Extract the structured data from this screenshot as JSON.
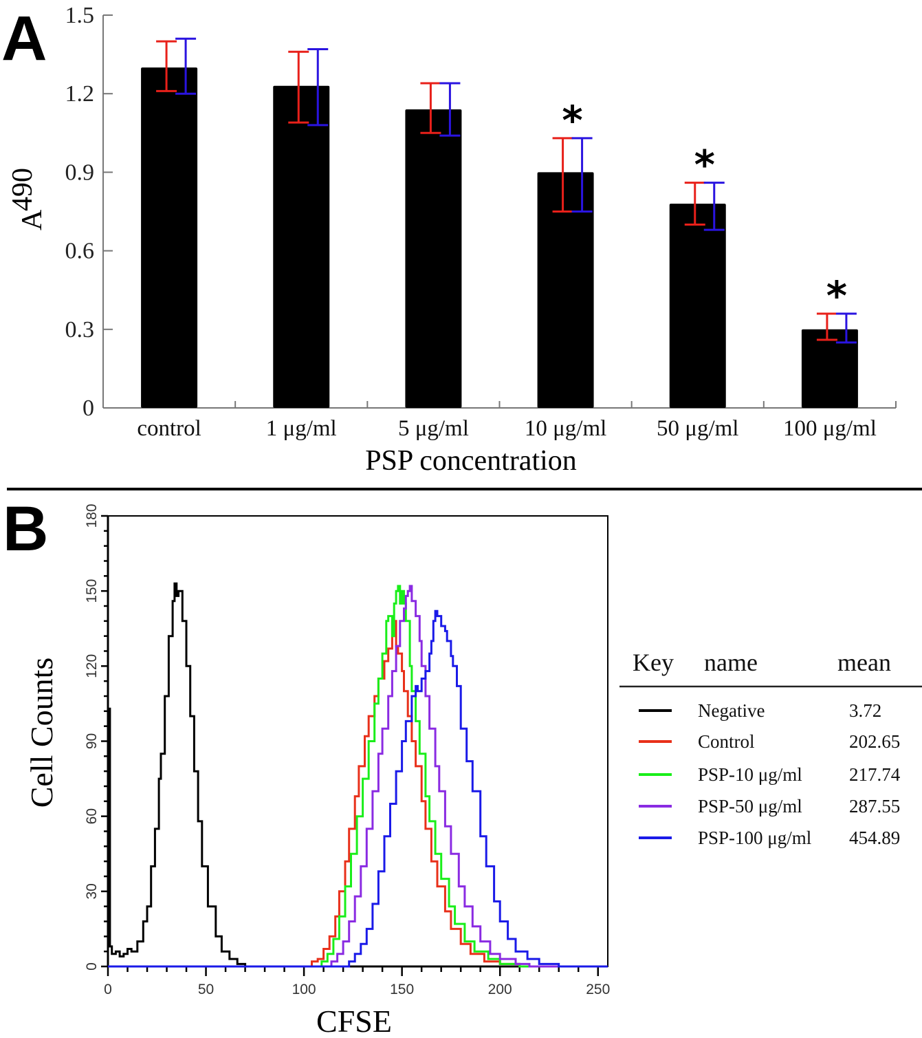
{
  "chart_data": [
    {
      "panel": "A",
      "type": "bar",
      "title": "",
      "xlabel": "PSP concentration",
      "ylabel": "A490",
      "ylabel_main": "A",
      "ylabel_sub": "490",
      "ylim": [
        0,
        1.5
      ],
      "yticks": [
        0,
        0.3,
        0.6,
        0.9,
        1.2,
        1.5
      ],
      "ytick_labels": [
        "0",
        "0.3",
        "0.6",
        "0.9",
        "1.2",
        "1.5"
      ],
      "grid": false,
      "categories": [
        "control",
        "1 μg/ml",
        "5 μg/ml",
        "10 μg/ml",
        "50 μg/ml",
        "100 μg/ml"
      ],
      "values": [
        1.3,
        1.23,
        1.14,
        0.9,
        0.78,
        0.3
      ],
      "bar_color": "#000000",
      "error_bars": [
        {
          "name": "red",
          "color": "#e8201a",
          "upper": [
            1.4,
            1.36,
            1.24,
            1.03,
            0.86,
            0.36
          ],
          "lower": [
            1.21,
            1.09,
            1.05,
            0.75,
            0.7,
            0.26
          ]
        },
        {
          "name": "blue",
          "color": "#2a14e0",
          "upper": [
            1.41,
            1.37,
            1.24,
            1.03,
            0.86,
            0.36
          ],
          "lower": [
            1.2,
            1.08,
            1.04,
            0.75,
            0.68,
            0.25
          ]
        }
      ],
      "significance": [
        "",
        "",
        "",
        "*",
        "*",
        "*"
      ]
    },
    {
      "panel": "B",
      "type": "line",
      "title": "",
      "xlabel": "CFSE",
      "ylabel": "Cell Counts",
      "xlim": [
        0,
        255
      ],
      "ylim": [
        0,
        180
      ],
      "xticks": [
        0,
        50,
        100,
        150,
        200,
        250
      ],
      "xtick_labels": [
        "0",
        "50",
        "100",
        "150",
        "200",
        "250"
      ],
      "yticks": [
        0,
        30,
        60,
        90,
        120,
        150,
        180
      ],
      "ytick_labels": [
        "0",
        "30",
        "60",
        "90",
        "120",
        "150",
        "180"
      ],
      "grid": false,
      "legend": {
        "placement": "right",
        "headers": [
          "Key",
          "name",
          "mean"
        ],
        "entries": [
          {
            "name": "Negative",
            "mean": "3.72",
            "color": "#000000"
          },
          {
            "name": "Control",
            "mean": "202.65",
            "color": "#e8301a"
          },
          {
            "name": "PSP-10 μg/ml",
            "mean": "217.74",
            "color": "#1aee1a"
          },
          {
            "name": "PSP-50 μg/ml",
            "mean": "287.55",
            "color": "#8a2be2"
          },
          {
            "name": "PSP-100 μg/ml",
            "mean": "454.89",
            "color": "#1a1ae8"
          }
        ]
      },
      "series": [
        {
          "name": "Negative",
          "color": "#000000",
          "x": [
            0,
            0.5,
            1,
            2,
            4,
            6,
            8,
            10,
            12,
            15,
            18,
            20,
            22,
            24,
            26,
            27,
            29,
            31,
            33,
            34,
            35,
            36,
            38,
            40,
            42,
            44,
            46,
            48,
            51,
            55,
            58,
            62,
            66,
            70,
            80,
            255
          ],
          "y": [
            103,
            103,
            8,
            5,
            6,
            4,
            5,
            7,
            6,
            10,
            18,
            24,
            40,
            55,
            75,
            85,
            108,
            132,
            146,
            153,
            148,
            150,
            138,
            120,
            100,
            78,
            58,
            40,
            24,
            12,
            6,
            3,
            1,
            0,
            0,
            0
          ]
        },
        {
          "name": "Control",
          "color": "#e8301a",
          "x": [
            0,
            100,
            104,
            107,
            110,
            113,
            116,
            118,
            121,
            123,
            126,
            128,
            131,
            133,
            136,
            138,
            141,
            143,
            145,
            147,
            148,
            150,
            151,
            153,
            155,
            157,
            160,
            162,
            165,
            168,
            172,
            175,
            180,
            185,
            192,
            200,
            210,
            255
          ],
          "y": [
            0,
            0,
            2,
            3,
            7,
            12,
            20,
            30,
            42,
            55,
            68,
            80,
            92,
            100,
            108,
            115,
            122,
            127,
            138,
            128,
            125,
            118,
            110,
            100,
            90,
            80,
            66,
            55,
            42,
            32,
            22,
            15,
            9,
            5,
            2,
            1,
            0,
            0
          ]
        },
        {
          "name": "PSP-10 μg/ml",
          "color": "#1aee1a",
          "x": [
            0,
            105,
            109,
            112,
            115,
            118,
            121,
            124,
            127,
            130,
            133,
            136,
            138,
            140,
            142,
            143,
            145,
            146,
            147,
            148,
            149,
            150,
            151,
            152,
            154,
            155,
            157,
            159,
            162,
            164,
            167,
            170,
            174,
            177,
            182,
            187,
            194,
            200,
            210,
            255
          ],
          "y": [
            0,
            0,
            2,
            5,
            11,
            20,
            32,
            45,
            60,
            75,
            90,
            105,
            115,
            125,
            138,
            140,
            132,
            145,
            150,
            152,
            145,
            150,
            145,
            138,
            120,
            110,
            98,
            85,
            68,
            58,
            45,
            35,
            24,
            17,
            10,
            6,
            3,
            1,
            0,
            0
          ]
        },
        {
          "name": "PSP-50 μg/ml",
          "color": "#8a2be2",
          "x": [
            0,
            110,
            114,
            117,
            120,
            123,
            126,
            129,
            132,
            135,
            138,
            140,
            143,
            145,
            147,
            149,
            151,
            152,
            153,
            154,
            155,
            157,
            159,
            160,
            162,
            164,
            167,
            169,
            172,
            175,
            179,
            182,
            186,
            190,
            195,
            200,
            208,
            215,
            255
          ],
          "y": [
            0,
            0,
            2,
            5,
            10,
            18,
            28,
            40,
            55,
            70,
            85,
            95,
            108,
            118,
            128,
            138,
            143,
            148,
            150,
            152,
            146,
            140,
            130,
            120,
            108,
            95,
            80,
            70,
            56,
            45,
            32,
            24,
            16,
            10,
            5,
            3,
            1,
            0,
            0
          ]
        },
        {
          "name": "PSP-100 μg/ml",
          "color": "#1a1ae8",
          "x": [
            0,
            120,
            123,
            126,
            129,
            132,
            135,
            138,
            141,
            144,
            147,
            150,
            152,
            155,
            157,
            158,
            160,
            162,
            164,
            165,
            166,
            167,
            168,
            170,
            172,
            173,
            175,
            176,
            178,
            180,
            183,
            186,
            190,
            193,
            197,
            200,
            204,
            208,
            214,
            220,
            230,
            255
          ],
          "y": [
            0,
            0,
            2,
            5,
            9,
            15,
            25,
            38,
            52,
            65,
            78,
            90,
            98,
            108,
            112,
            110,
            115,
            118,
            125,
            130,
            138,
            142,
            140,
            136,
            134,
            130,
            124,
            120,
            112,
            95,
            82,
            70,
            52,
            40,
            26,
            18,
            11,
            6,
            3,
            1,
            0,
            0
          ]
        }
      ]
    }
  ],
  "labels": {
    "panel_a": "A",
    "panel_b": "B"
  }
}
